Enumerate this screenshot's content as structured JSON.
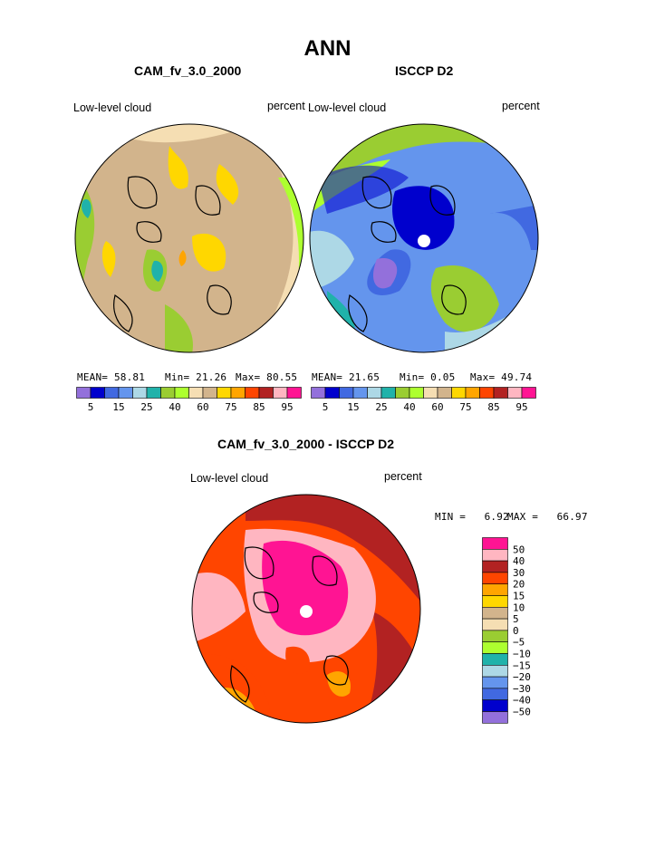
{
  "figure_title": "ANN",
  "panels": [
    {
      "title": "CAM_fv_3.0_2000",
      "left_label": "Low-level cloud",
      "right_label": "percent",
      "stats": {
        "mean_label": "MEAN=",
        "mean": "58.81",
        "min_label": "Min=",
        "min": "21.26",
        "max_label": "Max=",
        "max": "80.55"
      }
    },
    {
      "title": "ISCCP D2",
      "left_label": "Low-level cloud",
      "right_label": "percent",
      "stats": {
        "mean_label": "MEAN=",
        "mean": "21.65",
        "min_label": "Min=",
        "min": "0.05",
        "max_label": "Max=",
        "max": "49.74"
      }
    },
    {
      "title": "CAM_fv_3.0_2000 - ISCCP D2",
      "left_label": "Low-level cloud",
      "right_label": "percent",
      "stats": {
        "min_label": "MIN =",
        "min": "6.92",
        "max_label": "MAX =",
        "max": "66.97"
      }
    }
  ],
  "colorbar_abs": {
    "colors": [
      "#9370db",
      "#0000cd",
      "#4169e1",
      "#6495ed",
      "#add8e6",
      "#20b2aa",
      "#9acd32",
      "#adff2f",
      "#f5deb3",
      "#d2b48c",
      "#ffd700",
      "#ffa500",
      "#ff4500",
      "#b22222",
      "#ffb6c1",
      "#ff1493"
    ],
    "tick_labels": [
      "5",
      "15",
      "25",
      "40",
      "60",
      "75",
      "85",
      "95"
    ]
  },
  "colorbar_diff": {
    "colors": [
      "#9370db",
      "#0000cd",
      "#4169e1",
      "#6495ed",
      "#add8e6",
      "#20b2aa",
      "#adff2f",
      "#9acd32",
      "#f5deb3",
      "#d2b48c",
      "#ffd700",
      "#ffa500",
      "#ff4500",
      "#b22222",
      "#ffb6c1",
      "#ff1493"
    ],
    "tick_labels": [
      "50",
      "40",
      "30",
      "20",
      "15",
      "10",
      "5",
      "0",
      "−5",
      "−10",
      "−15",
      "−20",
      "−30",
      "−40",
      "−50"
    ]
  },
  "chart_data": [
    {
      "type": "heatmap",
      "title": "CAM_fv_3.0_2000",
      "projection": "north polar stereographic",
      "variable": "Low-level cloud",
      "units": "percent",
      "summary": {
        "mean": 58.81,
        "min": 21.26,
        "max": 80.55
      },
      "contour_levels": [
        5,
        10,
        15,
        20,
        25,
        30,
        40,
        50,
        60,
        65,
        70,
        75,
        80,
        85,
        90,
        95
      ]
    },
    {
      "type": "heatmap",
      "title": "ISCCP D2",
      "projection": "north polar stereographic",
      "variable": "Low-level cloud",
      "units": "percent",
      "summary": {
        "mean": 21.65,
        "min": 0.05,
        "max": 49.74
      },
      "contour_levels": [
        5,
        10,
        15,
        20,
        25,
        30,
        40,
        50,
        60,
        65,
        70,
        75,
        80,
        85,
        90,
        95
      ]
    },
    {
      "type": "heatmap",
      "title": "CAM_fv_3.0_2000 - ISCCP D2",
      "projection": "north polar stereographic",
      "variable": "Low-level cloud",
      "units": "percent",
      "summary": {
        "min": 6.92,
        "max": 66.97
      },
      "contour_levels": [
        -50,
        -40,
        -30,
        -20,
        -15,
        -10,
        -5,
        0,
        5,
        10,
        15,
        20,
        30,
        40,
        50
      ]
    }
  ]
}
